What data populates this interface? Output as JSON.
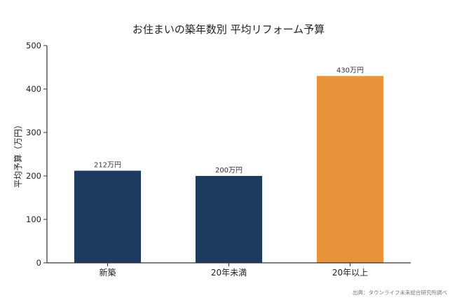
{
  "chart_data": {
    "type": "bar",
    "title": "お住まいの築年数別 平均リフォーム予算",
    "ylabel": "平均予算（万円）",
    "xlabel": "",
    "categories": [
      "新築",
      "20年未満",
      "20年以上"
    ],
    "values": [
      212,
      200,
      430
    ],
    "value_labels": [
      "212万円",
      "200万円",
      "430万円"
    ],
    "bar_colors": [
      "#1d3a5f",
      "#1d3a5f",
      "#e8943a"
    ],
    "ylim": [
      0,
      500
    ],
    "yticks": [
      0,
      100,
      200,
      300,
      400,
      500
    ],
    "grid": false,
    "legend": "none"
  },
  "source_note": "出典：タウンライフ未来総合研究所調べ"
}
